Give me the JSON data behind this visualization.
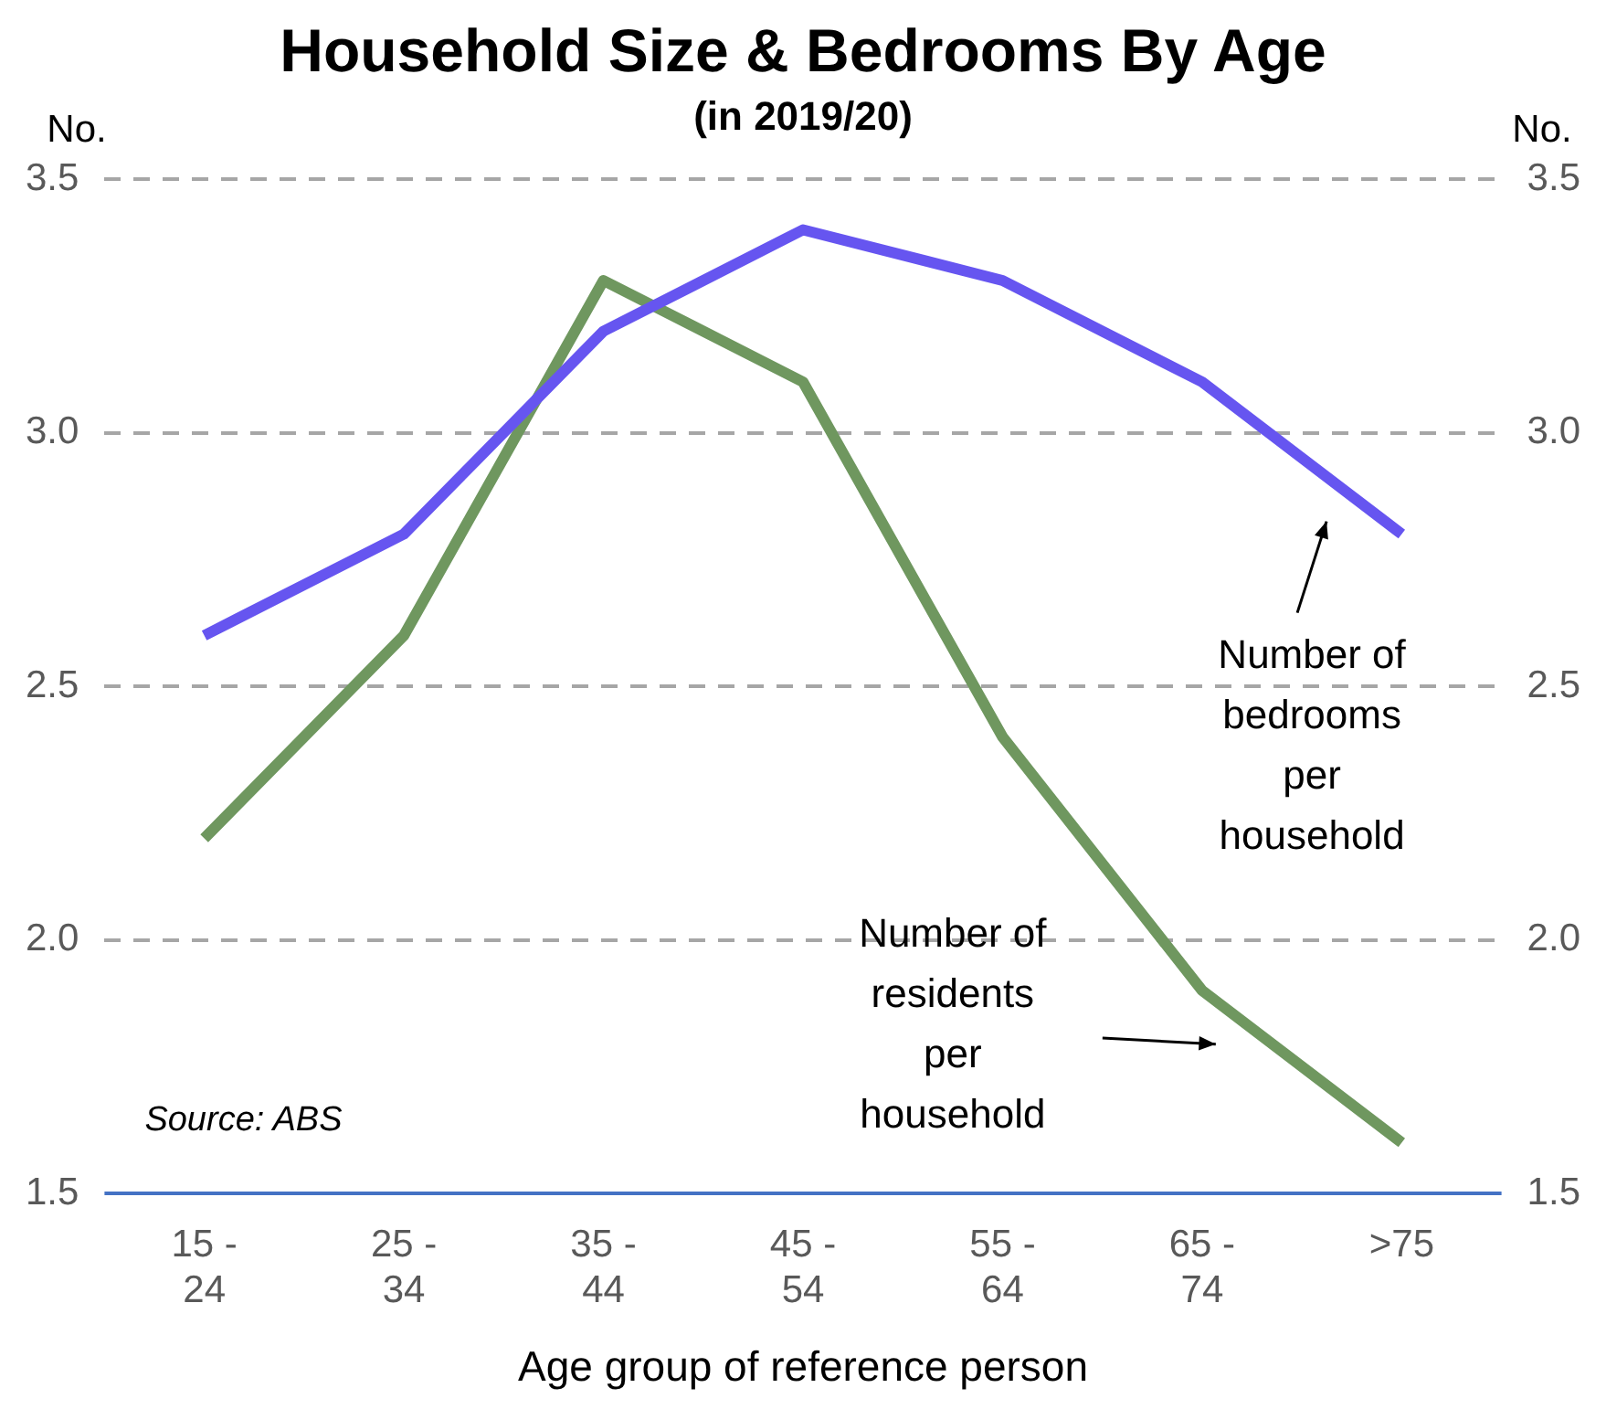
{
  "chart_data": {
    "type": "line",
    "title": "Household Size & Bedrooms By Age",
    "subtitle": "(in 2019/20)",
    "xlabel": "Age group of reference person",
    "ylabel": "No.",
    "y2label": "No.",
    "categories": [
      "15 - 24",
      "25 - 34",
      "35 - 44",
      "45 - 54",
      "55 - 64",
      "65 - 74",
      ">75"
    ],
    "series": [
      {
        "name": "Number of bedrooms per household",
        "color": "#6655f0",
        "values": [
          2.6,
          2.8,
          3.2,
          3.4,
          3.3,
          3.1,
          2.8
        ]
      },
      {
        "name": "Number of residents per household",
        "color": "#6f975f",
        "values": [
          2.2,
          2.6,
          3.3,
          3.1,
          2.4,
          1.9,
          1.6
        ]
      }
    ],
    "ylim": [
      1.5,
      3.5
    ],
    "yticks": [
      1.5,
      {
        "value": 2,
        "label": "2.0"
      },
      2.5,
      {
        "value": 3,
        "label": "3.0"
      },
      3.5
    ],
    "y2lim": [
      1.5,
      3.5
    ],
    "y2ticks": [
      1.5,
      {
        "value": 2,
        "label": "2.0"
      },
      2.5,
      {
        "value": 3,
        "label": "3.0"
      },
      3.5
    ],
    "grid": "y",
    "legend": false,
    "marker": "none",
    "line_style": "solid",
    "annotations": [
      "Source: ABS"
    ]
  }
}
